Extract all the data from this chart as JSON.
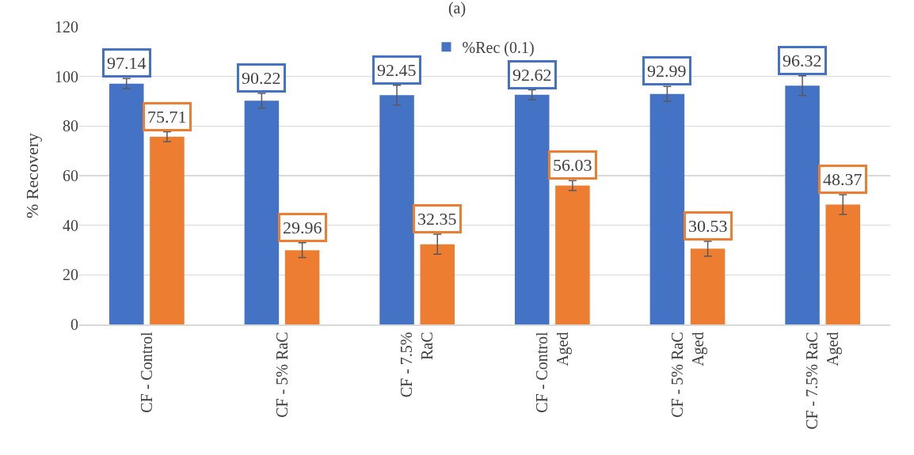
{
  "chart_data": {
    "type": "bar",
    "title": "(a)",
    "ylabel": "% Recovery",
    "categories": [
      "CF - Control",
      "CF - 5% RaC",
      "CF - 7.5%\nRaC",
      "CF - Control\nAged",
      "CF - 5% RaC\nAged",
      "CF - 7.5% RaC\nAged"
    ],
    "series": [
      {
        "name": "%Rec (0.1)",
        "color": "#4472c4",
        "values": [
          97.14,
          90.22,
          92.45,
          92.62,
          92.99,
          96.32
        ],
        "errors": [
          2,
          3,
          4,
          2,
          3,
          4
        ]
      },
      {
        "color": "#ed7d31",
        "values": [
          75.71,
          29.96,
          32.35,
          56.03,
          30.53,
          48.37
        ],
        "errors": [
          2,
          3,
          4,
          2,
          3,
          4
        ]
      }
    ],
    "ylim": [
      0,
      120
    ],
    "yticks": [
      0,
      20,
      40,
      60,
      80,
      100,
      120
    ],
    "grid": "y",
    "legend": "top",
    "data_labels": true
  }
}
